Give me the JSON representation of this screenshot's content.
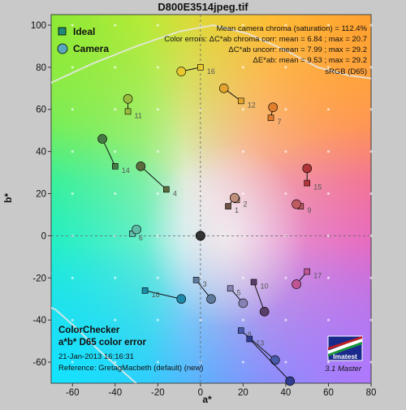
{
  "chart_data": {
    "type": "scatter",
    "title": "D800E3514jpeg.tif",
    "xlabel": "a*",
    "ylabel": "b*",
    "xlim": [
      -70,
      80
    ],
    "ylim": [
      -70,
      105
    ],
    "xticks": [
      -60,
      -40,
      -20,
      0,
      20,
      40,
      60,
      80
    ],
    "yticks": [
      -60,
      -40,
      -20,
      0,
      20,
      40,
      60,
      80,
      100
    ],
    "grid": "dashed axes at 0; dotted grid points",
    "legend": {
      "placement": "top-left",
      "entries": [
        {
          "label": "Ideal",
          "marker": "square"
        },
        {
          "label": "Camera",
          "marker": "circle"
        }
      ]
    },
    "stats": [
      "Mean camera chroma (saturation) = 112.4%",
      "Color errors:  ΔC*ab chroma corr:  mean = 6.84  ;  max = 20.7",
      "ΔC*ab uncorr:  mean = 7.99  ;  max = 29.2",
      "ΔE*ab:  mean = 9.53  ;  max = 29.2",
      "sRGB (D65)"
    ],
    "info_box": {
      "line1": "ColorChecker",
      "line2": "a*b* D65 color error",
      "line3": "21-Jan-2013 16:16:31",
      "line4": "Reference: GretagMacbeth (default) (new)"
    },
    "logo": "Imatest",
    "version": "3.1  Master",
    "patches": [
      {
        "id": "1",
        "ideal": [
          13,
          14
        ],
        "camera": [
          16,
          18
        ],
        "color": "#6e5243"
      },
      {
        "id": "2",
        "ideal": [
          17,
          17
        ],
        "camera": [
          16,
          18
        ],
        "color": "#c08f7b"
      },
      {
        "id": "3",
        "ideal": [
          -2,
          -21
        ],
        "camera": [
          5,
          -30
        ],
        "color": "#5e7b9e"
      },
      {
        "id": "4",
        "ideal": [
          -16,
          22
        ],
        "camera": [
          -28,
          33
        ],
        "color": "#5b6b3e"
      },
      {
        "id": "5",
        "ideal": [
          14,
          -25
        ],
        "camera": [
          20,
          -32
        ],
        "color": "#8882b4"
      },
      {
        "id": "6",
        "ideal": [
          -32,
          1
        ],
        "camera": [
          -30,
          3
        ],
        "color": "#5fbaa8"
      },
      {
        "id": "7",
        "ideal": [
          33,
          56
        ],
        "camera": [
          34,
          61
        ],
        "color": "#de7e2e"
      },
      {
        "id": "8",
        "ideal": [
          19,
          -45
        ],
        "camera": [
          35,
          -59
        ],
        "color": "#485aa8"
      },
      {
        "id": "9",
        "ideal": [
          47,
          14
        ],
        "camera": [
          45,
          15
        ],
        "color": "#c25a62"
      },
      {
        "id": "10",
        "ideal": [
          25,
          -22
        ],
        "camera": [
          30,
          -36
        ],
        "color": "#5a3e6a"
      },
      {
        "id": "11",
        "ideal": [
          -34,
          59
        ],
        "camera": [
          -34,
          65
        ],
        "color": "#9abc3e"
      },
      {
        "id": "12",
        "ideal": [
          19,
          64
        ],
        "camera": [
          11,
          70
        ],
        "color": "#e3a32e"
      },
      {
        "id": "13",
        "ideal": [
          23,
          -49
        ],
        "camera": [
          42,
          -69
        ],
        "color": "#303c8e"
      },
      {
        "id": "14",
        "ideal": [
          -40,
          33
        ],
        "camera": [
          -46,
          46
        ],
        "color": "#467a44"
      },
      {
        "id": "15",
        "ideal": [
          50,
          25
        ],
        "camera": [
          50,
          32
        ],
        "color": "#b0353a"
      },
      {
        "id": "16",
        "ideal": [
          0,
          80
        ],
        "camera": [
          -9,
          78
        ],
        "color": "#e8c82c"
      },
      {
        "id": "17",
        "ideal": [
          50,
          -17
        ],
        "camera": [
          45,
          -23
        ],
        "color": "#bf5594"
      },
      {
        "id": "18",
        "ideal": [
          -26,
          -26
        ],
        "camera": [
          -9,
          -30
        ],
        "color": "#1e89a8"
      },
      {
        "id": "19",
        "ideal": [
          0,
          0
        ],
        "camera": [
          0,
          0
        ],
        "color": "#f3f3f2"
      },
      {
        "id": "20",
        "ideal": [
          0,
          0
        ],
        "camera": [
          0,
          0
        ],
        "color": "#c8c8c8"
      },
      {
        "id": "21",
        "ideal": [
          0,
          0
        ],
        "camera": [
          0,
          0
        ],
        "color": "#a0a0a0"
      },
      {
        "id": "22",
        "ideal": [
          0,
          0
        ],
        "camera": [
          0,
          0
        ],
        "color": "#7a7a79"
      },
      {
        "id": "23",
        "ideal": [
          0,
          0
        ],
        "camera": [
          0,
          0
        ],
        "color": "#555555"
      },
      {
        "id": "24",
        "ideal": [
          0,
          0
        ],
        "camera": [
          0,
          0
        ],
        "color": "#343434"
      }
    ]
  }
}
